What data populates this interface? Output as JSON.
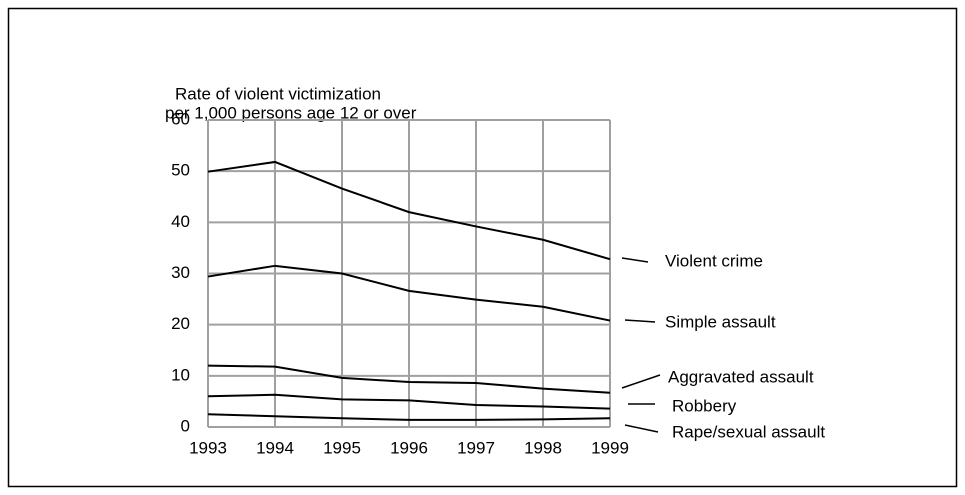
{
  "chart_data": {
    "type": "line",
    "ylabel": [
      "Rate of violent victimization",
      "per 1,000 persons age 12 or over"
    ],
    "x": [
      1993,
      1994,
      1995,
      1996,
      1997,
      1998,
      1999
    ],
    "xlim": [
      1993,
      1999
    ],
    "xticks": [
      1993,
      1994,
      1995,
      1996,
      1997,
      1998,
      1999
    ],
    "ylim": [
      0,
      60
    ],
    "yticks": [
      0,
      10,
      20,
      30,
      40,
      50,
      60
    ],
    "grid": true,
    "legend": "right",
    "series": [
      {
        "name": "Violent crime",
        "color": "#000000",
        "values": [
          49.9,
          51.8,
          46.6,
          42.0,
          39.2,
          36.6,
          32.8
        ]
      },
      {
        "name": "Simple assault",
        "color": "#000000",
        "values": [
          29.4,
          31.5,
          30.0,
          26.6,
          24.9,
          23.5,
          20.8
        ]
      },
      {
        "name": "Aggravated assault",
        "color": "#000000",
        "values": [
          12.0,
          11.8,
          9.6,
          8.8,
          8.6,
          7.5,
          6.7
        ]
      },
      {
        "name": "Robbery",
        "color": "#000000",
        "values": [
          6.0,
          6.3,
          5.4,
          5.2,
          4.3,
          4.0,
          3.6
        ]
      },
      {
        "name": "Rape/sexual assault",
        "color": "#000000",
        "values": [
          2.5,
          2.1,
          1.7,
          1.4,
          1.4,
          1.5,
          1.7
        ]
      }
    ]
  }
}
